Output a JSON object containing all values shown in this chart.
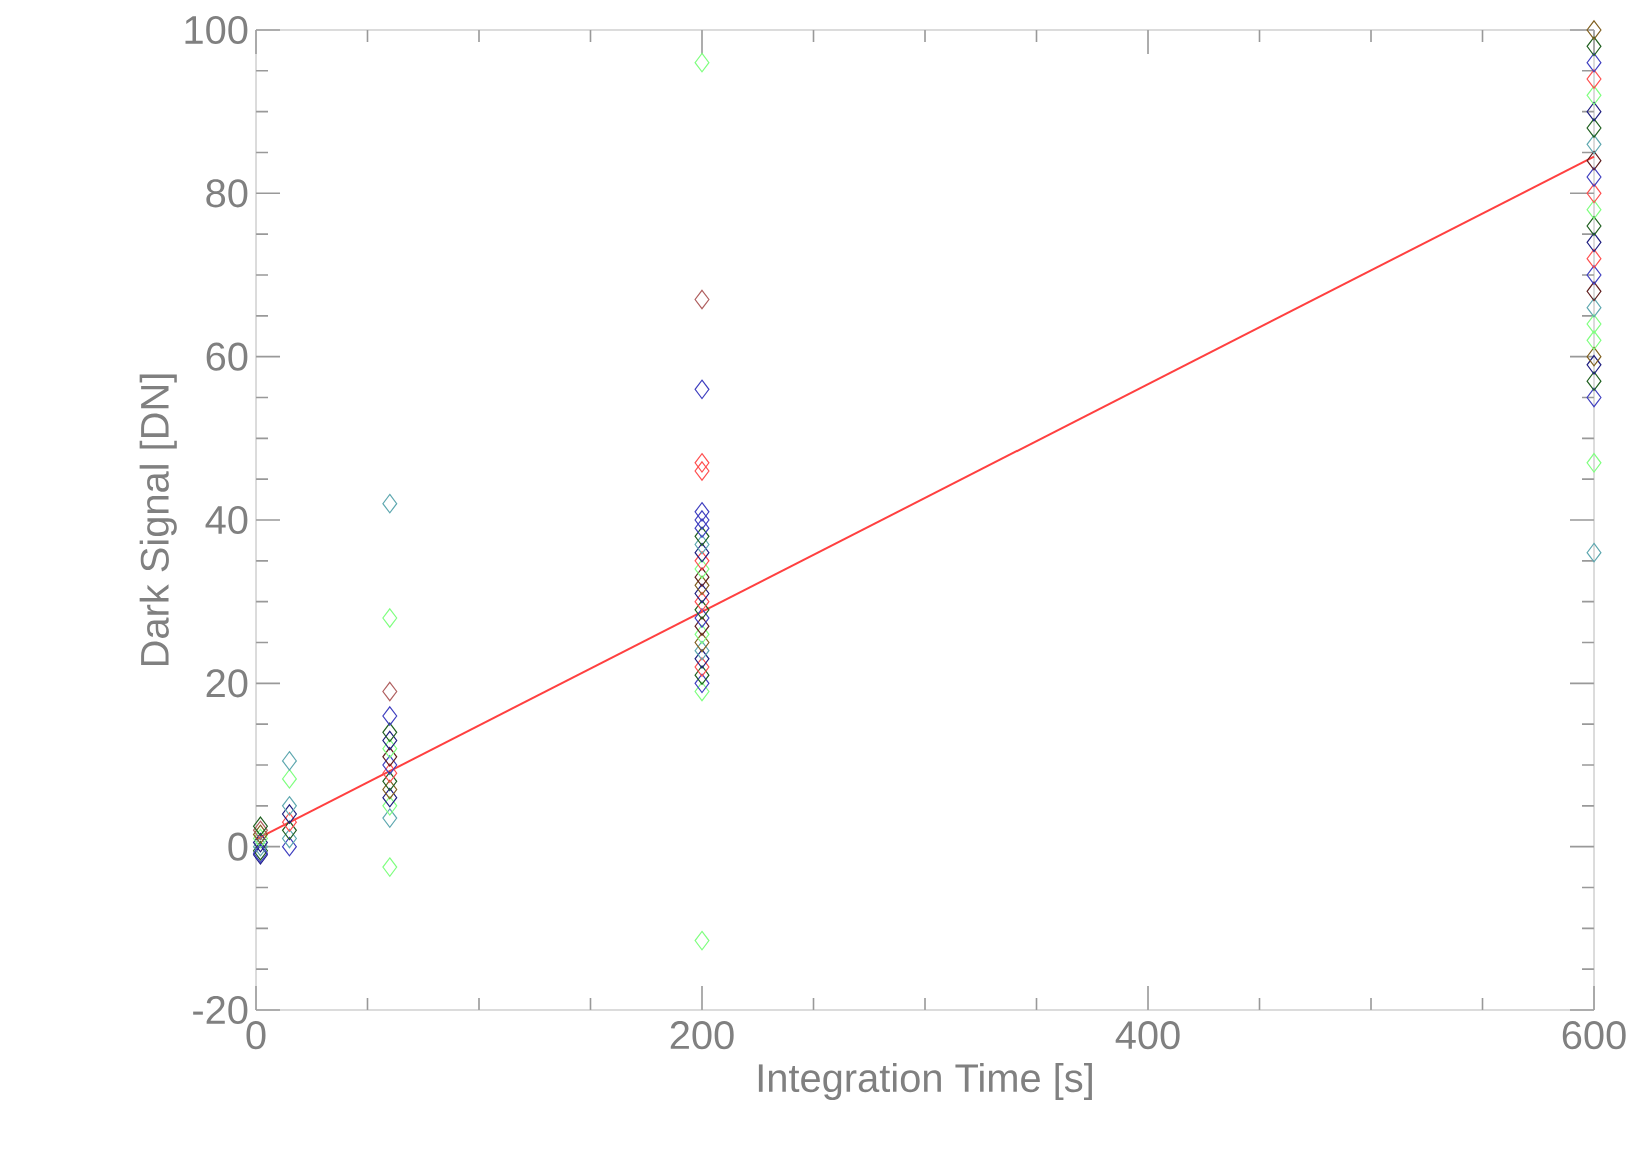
{
  "chart_data": {
    "type": "scatter",
    "xlabel": "Integration Time [s]",
    "ylabel": "Dark Signal [DN]",
    "xlim": [
      0,
      600
    ],
    "ylim": [
      -20,
      100
    ],
    "xticks": [
      0,
      200,
      400,
      600
    ],
    "yticks": [
      -20,
      0,
      20,
      40,
      60,
      80,
      100
    ],
    "grid": false,
    "series": [
      {
        "marker": "diamond",
        "x": [
          2,
          2,
          2,
          2,
          2,
          2,
          2,
          2,
          2,
          15,
          15,
          15,
          15,
          15,
          15,
          15,
          15,
          60,
          60,
          60,
          60,
          60,
          60,
          60,
          60,
          60,
          60,
          60,
          60,
          60,
          60,
          60,
          60,
          200,
          200,
          200,
          200,
          200,
          200,
          200,
          200,
          200,
          200,
          200,
          200,
          200,
          200,
          200,
          200,
          200,
          200,
          200,
          200,
          200,
          200,
          200,
          200,
          200,
          200,
          200,
          200,
          200,
          600,
          600,
          600,
          600,
          600,
          600,
          600,
          600,
          600,
          600,
          600,
          600,
          600,
          600,
          600,
          600,
          600,
          600,
          600,
          600,
          600,
          600,
          600,
          600,
          600,
          600
        ],
        "values": [
          -1,
          -0.5,
          0,
          0.5,
          1,
          1.5,
          2,
          2.5,
          -0.8,
          0,
          1,
          2,
          3,
          4,
          5,
          8.3,
          10.5,
          3.5,
          5,
          6,
          7,
          8,
          9,
          10,
          11,
          12,
          13,
          14,
          16,
          19,
          28,
          42,
          -2.5,
          19,
          20,
          21,
          22,
          23,
          24,
          25,
          26,
          27,
          28,
          29,
          30,
          31,
          32,
          33,
          34,
          35,
          36,
          37,
          38,
          39,
          40,
          41,
          46,
          47,
          56,
          67,
          96,
          -11.5,
          55,
          57,
          59,
          60,
          62,
          64,
          66,
          68,
          70,
          72,
          74,
          76,
          78,
          80,
          82,
          84,
          86,
          88,
          90,
          92,
          94,
          96,
          98,
          100,
          47,
          36
        ],
        "colors": [
          "#202080",
          "#206020",
          "#5fa8b0",
          "#202080",
          "#80ff80",
          "#806020",
          "#b06060",
          "#206020",
          "#4040c0",
          "#4040c0",
          "#5fa8b0",
          "#206020",
          "#ff5050",
          "#202080",
          "#5fa8b0",
          "#80ff80",
          "#5fa8b0",
          "#5fa8b0",
          "#80ff80",
          "#202080",
          "#806020",
          "#206020",
          "#ff5050",
          "#4040c0",
          "#602020",
          "#80ff80",
          "#202080",
          "#206020",
          "#4040c0",
          "#b06060",
          "#80ff80",
          "#5fa8b0",
          "#80ff80",
          "#80ff80",
          "#4040c0",
          "#206020",
          "#ff5050",
          "#202080",
          "#5fa8b0",
          "#806020",
          "#80ff80",
          "#602020",
          "#4040c0",
          "#206020",
          "#ff5050",
          "#202080",
          "#806020",
          "#602020",
          "#80ff80",
          "#ff5050",
          "#202080",
          "#5fa8b0",
          "#206020",
          "#4040c0",
          "#4040c0",
          "#4040c0",
          "#ff5050",
          "#ff5050",
          "#4040c0",
          "#b06060",
          "#80ff80",
          "#80ff80",
          "#4040c0",
          "#206020",
          "#202080",
          "#806020",
          "#80ff80",
          "#80ff80",
          "#5fa8b0",
          "#602020",
          "#4040c0",
          "#ff5050",
          "#202080",
          "#206020",
          "#80ff80",
          "#ff5050",
          "#4040c0",
          "#602020",
          "#5fa8b0",
          "#206020",
          "#202080",
          "#80ff80",
          "#ff5050",
          "#4040c0",
          "#206020",
          "#806020",
          "#80ff80",
          "#5fa8b0"
        ]
      },
      {
        "type": "line",
        "marker": "none",
        "line_style": "solid",
        "color": "#ff4040",
        "x": [
          0,
          600
        ],
        "values": [
          0.9,
          84.5
        ]
      }
    ]
  }
}
